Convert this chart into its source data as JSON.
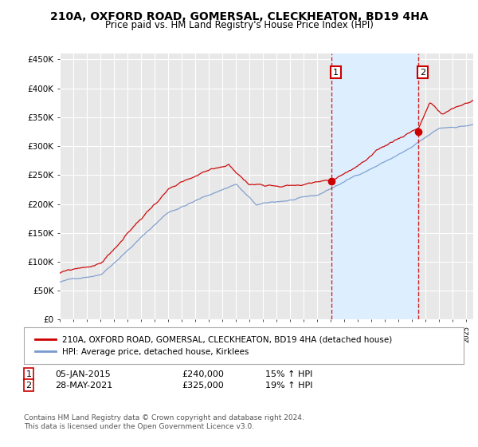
{
  "title": "210A, OXFORD ROAD, GOMERSAL, CLECKHEATON, BD19 4HA",
  "subtitle": "Price paid vs. HM Land Registry's House Price Index (HPI)",
  "ylabel_ticks": [
    "£0",
    "£50K",
    "£100K",
    "£150K",
    "£200K",
    "£250K",
    "£300K",
    "£350K",
    "£400K",
    "£450K"
  ],
  "ytick_values": [
    0,
    50000,
    100000,
    150000,
    200000,
    250000,
    300000,
    350000,
    400000,
    450000
  ],
  "ylim": [
    0,
    460000
  ],
  "xlim_start": 1995.0,
  "xlim_end": 2025.5,
  "background_color": "#ffffff",
  "plot_bg_color": "#e8e8e8",
  "grid_color": "#ffffff",
  "shade_color": "#ddeeff",
  "red_line_color": "#cc0000",
  "blue_line_color": "#7799cc",
  "point1_x": 2015.02,
  "point1_y": 240000,
  "point2_x": 2021.42,
  "point2_y": 325000,
  "vline_color": "#cc0000",
  "legend_label_red": "210A, OXFORD ROAD, GOMERSAL, CLECKHEATON, BD19 4HA (detached house)",
  "legend_label_blue": "HPI: Average price, detached house, Kirklees",
  "table_row1": [
    "1",
    "05-JAN-2015",
    "£240,000",
    "15% ↑ HPI"
  ],
  "table_row2": [
    "2",
    "28-MAY-2021",
    "£325,000",
    "19% ↑ HPI"
  ],
  "footer": "Contains HM Land Registry data © Crown copyright and database right 2024.\nThis data is licensed under the Open Government Licence v3.0.",
  "title_fontsize": 10,
  "subtitle_fontsize": 8.5,
  "axis_fontsize": 7.5,
  "legend_fontsize": 7.5,
  "table_fontsize": 8,
  "footer_fontsize": 6.5
}
